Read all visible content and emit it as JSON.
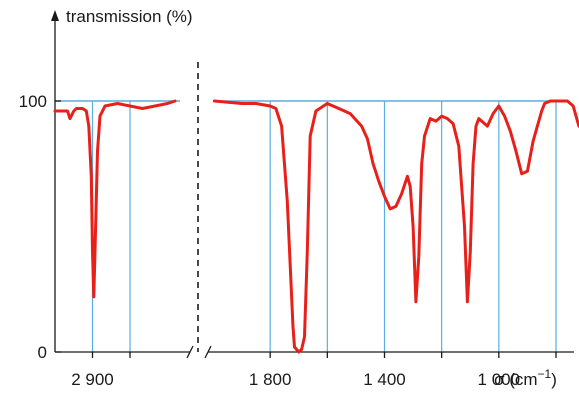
{
  "chart_data": {
    "type": "line",
    "ylabel": "transmission (%)",
    "xlabel": "σ (cm",
    "xlabel_sup": "−1",
    "xlabel_close": ")",
    "y_ticks": [
      "0",
      "100"
    ],
    "ylim": [
      0,
      100
    ],
    "axis_break": true,
    "grid": "vertical lines at x ticks, horizontal line at 100",
    "colors": {
      "series": "#e8201a",
      "grid": "#5aaee0",
      "axis": "#1a1a1a"
    },
    "panels": [
      {
        "xlim": [
          3050,
          2550
        ],
        "grid_x": [
          2900,
          2750
        ],
        "x_ticks": [
          {
            "value": 2900,
            "label": "2 900"
          }
        ],
        "series": [
          {
            "x": [
              3050,
              3000,
              2990,
              2975,
              2965,
              2940,
              2925,
              2915,
              2905,
              2900,
              2895,
              2890,
              2880,
              2870,
              2850,
              2800,
              2750,
              2700,
              2650,
              2600,
              2570
            ],
            "y": [
              96,
              96,
              93,
              96,
              97,
              97,
              96,
              90,
              70,
              40,
              22,
              40,
              80,
              94,
              98,
              99,
              98,
              97,
              98,
              99,
              100
            ]
          }
        ]
      },
      {
        "xlim": [
          2000,
          800
        ],
        "grid_x": [
          1800,
          1600,
          1400,
          1200,
          1000,
          800
        ],
        "x_ticks": [
          {
            "value": 1800,
            "label": "1 800"
          },
          {
            "value": 1400,
            "label": "1 400"
          },
          {
            "value": 1000,
            "label": "1 000"
          }
        ],
        "series": [
          {
            "x": [
              1995,
              1900,
              1850,
              1800,
              1780,
              1760,
              1740,
              1720,
              1715,
              1700,
              1690,
              1680,
              1670,
              1660,
              1640,
              1600,
              1560,
              1520,
              1480,
              1460,
              1440,
              1420,
              1400,
              1380,
              1360,
              1340,
              1320,
              1310,
              1300,
              1290,
              1280,
              1270,
              1260,
              1240,
              1220,
              1200,
              1180,
              1160,
              1140,
              1120,
              1110,
              1100,
              1090,
              1080,
              1070,
              1060,
              1040,
              1020,
              1000,
              980,
              960,
              940,
              920,
              900,
              880,
              860,
              850,
              840,
              820,
              800,
              780,
              760,
              740,
              720,
              700,
              680
            ],
            "y": [
              100,
              99,
              99,
              98,
              97,
              90,
              60,
              10,
              2,
              0,
              1,
              6,
              40,
              86,
              96,
              99,
              97,
              95,
              90,
              85,
              75,
              68,
              62,
              57,
              58,
              63,
              70,
              66,
              50,
              20,
              38,
              75,
              86,
              93,
              92,
              94,
              93,
              91,
              82,
              50,
              20,
              40,
              75,
              90,
              93,
              92,
              90,
              95,
              98,
              94,
              88,
              80,
              71,
              72,
              84,
              92,
              96,
              99,
              100,
              100,
              100,
              100,
              98,
              90,
              93,
              100
            ]
          }
        ]
      }
    ]
  }
}
